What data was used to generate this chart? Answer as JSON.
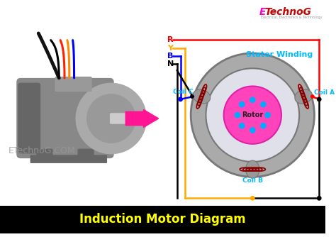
{
  "bg_color": "#ffffff",
  "title_text": "Induction Motor Diagram",
  "title_bg": "#000000",
  "title_color": "#ffff00",
  "brand_color_E": "#ff00cc",
  "brand_color_rest": "#cc0000",
  "watermark": "ETechnoG.COM",
  "arrow_color": "#ff1493",
  "wire_colors": {
    "R": "#ff0000",
    "Y": "#ffaa00",
    "B": "#0000ff",
    "N": "#000000"
  },
  "stator_outer_color": "#aaaaaa",
  "stator_inner_bg": "#e8e8f0",
  "rotor_fill": "#ff44bb",
  "rotor_edge": "#dd22aa",
  "rotor_dot_color": "#00aaff",
  "coil_A_color": "#8B0000",
  "coil_B_color": "#8B0000",
  "coil_C_color": "#8B0000",
  "coil_stator_color": "#999999",
  "label_color": "#00bbff",
  "stator_winding_label": "Stator Winding",
  "rotor_label": "Rotor",
  "motor_body_color": "#888888",
  "motor_dark": "#666666",
  "motor_light": "#aaaaaa",
  "motor_shaft_color": "#cccccc",
  "term_box_color": "#999999"
}
